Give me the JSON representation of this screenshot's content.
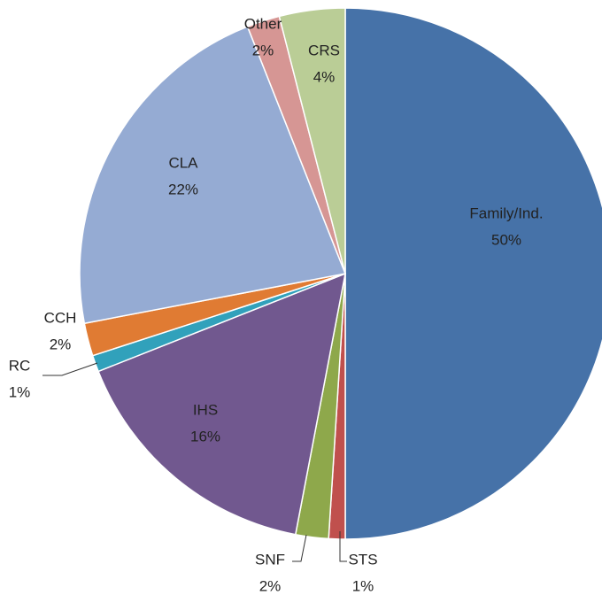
{
  "chart_data": {
    "type": "pie",
    "categories": [
      "Family/Ind.",
      "STS",
      "SNF",
      "IHS",
      "RC",
      "CCH",
      "CLA",
      "Other",
      "CRS"
    ],
    "values": [
      50,
      1,
      2,
      16,
      1,
      2,
      22,
      2,
      4
    ],
    "value_labels": [
      "50%",
      "1%",
      "2%",
      "16%",
      "1%",
      "2%",
      "22%",
      "2%",
      "4%"
    ],
    "colors": [
      "#4672a8",
      "#c0504d",
      "#8ea84b",
      "#71588f",
      "#31a1bb",
      "#e07b33",
      "#95abd3",
      "#d69694",
      "#bacd96"
    ]
  }
}
